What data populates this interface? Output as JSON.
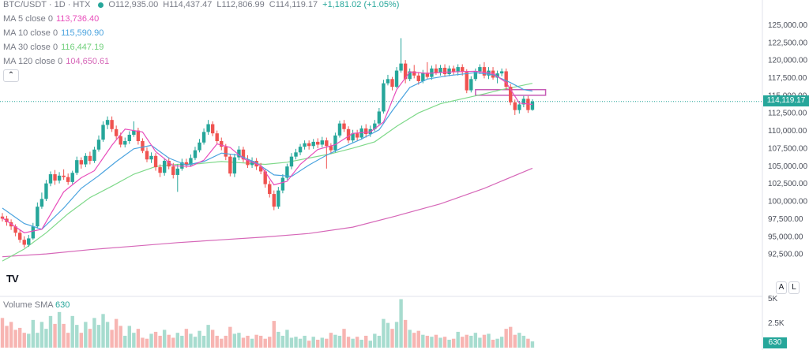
{
  "header": {
    "symbol": "BTC/USDT · 1D · HTX",
    "open": "O112,935.00",
    "high": "H114,437.47",
    "low": "L112,806.99",
    "close": "C114,119.17",
    "change": "+1,181.02 (+1.05%)"
  },
  "legend": [
    {
      "label": "MA 5 close 0",
      "value": "113,736.40",
      "color": "#e84dbb"
    },
    {
      "label": "MA 10 close 0",
      "value": "115,590.90",
      "color": "#4aa3df"
    },
    {
      "label": "MA 30 close 0",
      "value": "116,447.19",
      "color": "#6fcf7a"
    },
    {
      "label": "MA 120 close 0",
      "value": "104,650.61",
      "color": "#d667b8"
    }
  ],
  "collapse_icon": "chevron-up-icon",
  "logo_text": "TV",
  "buttons": {
    "auto": "A",
    "log": "L"
  },
  "price_tag": "114,119.17",
  "volume": {
    "title": "Volume SMA",
    "value": "630",
    "tag": "630"
  },
  "colors": {
    "up": "#26a69a",
    "down": "#ef5350",
    "up_vol": "#a7dccf",
    "down_vol": "#f7b5b2",
    "box": "#c65bb6"
  },
  "chart_data": {
    "type": "candlestick",
    "y_ticks": [
      "125,000.00",
      "122,500.00",
      "120,000.00",
      "117,500.00",
      "115,000.00",
      "112,500.00",
      "110,000.00",
      "107,500.00",
      "105,000.00",
      "102,500.00",
      "100,000.00",
      "97,500.00",
      "95,000.00",
      "92,500.00"
    ],
    "ylim": [
      90500,
      126500
    ],
    "volume_ticks": [
      "5K",
      "2.5K"
    ],
    "candles": [
      [
        97800,
        97500,
        98300,
        97100
      ],
      [
        97500,
        97000,
        97900,
        96500
      ],
      [
        97000,
        96400,
        97400,
        95900
      ],
      [
        96400,
        95500,
        96700,
        95000
      ],
      [
        95500,
        94500,
        95900,
        94100
      ],
      [
        94500,
        93800,
        95000,
        93400
      ],
      [
        93800,
        94700,
        95200,
        93500
      ],
      [
        94700,
        96400,
        96900,
        94500
      ],
      [
        96400,
        99200,
        99800,
        96100
      ],
      [
        99200,
        100300,
        101200,
        98900
      ],
      [
        100300,
        102500,
        103000,
        100000
      ],
      [
        102500,
        103800,
        104200,
        102100
      ],
      [
        103800,
        102900,
        104400,
        102300
      ],
      [
        102900,
        103600,
        104100,
        102500
      ],
      [
        103600,
        103400,
        104500,
        103000
      ],
      [
        103400,
        102700,
        103900,
        102300
      ],
      [
        102700,
        104000,
        104300,
        102400
      ],
      [
        104000,
        105800,
        106300,
        103700
      ],
      [
        105800,
        105200,
        106200,
        104600
      ],
      [
        105200,
        106400,
        106800,
        104800
      ],
      [
        106400,
        105700,
        107000,
        105200
      ],
      [
        105700,
        107300,
        107700,
        105400
      ],
      [
        107300,
        108700,
        109300,
        107000
      ],
      [
        108700,
        110800,
        111300,
        108400
      ],
      [
        110800,
        111500,
        112000,
        110200
      ],
      [
        111500,
        110200,
        112000,
        109800
      ],
      [
        110200,
        109200,
        110700,
        108800
      ],
      [
        109200,
        108000,
        109700,
        107600
      ],
      [
        108000,
        108500,
        109000,
        107600
      ],
      [
        108500,
        109400,
        109900,
        108100
      ],
      [
        109400,
        110000,
        111300,
        109100
      ],
      [
        110000,
        108500,
        110400,
        108000
      ],
      [
        108500,
        107100,
        108900,
        106800
      ],
      [
        107100,
        105900,
        107600,
        105500
      ],
      [
        105900,
        106400,
        106900,
        105400
      ],
      [
        106400,
        104800,
        106800,
        104300
      ],
      [
        104800,
        104000,
        105200,
        103400
      ],
      [
        104000,
        105700,
        106100,
        103600
      ],
      [
        105700,
        104900,
        106200,
        104500
      ],
      [
        104900,
        103700,
        105400,
        103200
      ],
      [
        103700,
        104600,
        105200,
        101300
      ],
      [
        104600,
        105500,
        106000,
        104300
      ],
      [
        105500,
        105100,
        106000,
        104700
      ],
      [
        105100,
        106100,
        106600,
        104900
      ],
      [
        106100,
        107200,
        107700,
        105800
      ],
      [
        107200,
        108300,
        108800,
        106900
      ],
      [
        108300,
        109800,
        110300,
        108000
      ],
      [
        109800,
        110900,
        111500,
        109400
      ],
      [
        110900,
        109600,
        111300,
        109200
      ],
      [
        109600,
        108500,
        110000,
        108100
      ],
      [
        108500,
        107700,
        109000,
        107200
      ],
      [
        107700,
        106300,
        108100,
        105800
      ],
      [
        106300,
        103900,
        106700,
        103500
      ],
      [
        103900,
        106200,
        106700,
        103400
      ],
      [
        106200,
        107300,
        107800,
        105800
      ],
      [
        107300,
        105900,
        107700,
        105500
      ],
      [
        105900,
        105100,
        106500,
        104700
      ],
      [
        105100,
        105700,
        106200,
        104700
      ],
      [
        105700,
        104900,
        106100,
        104400
      ],
      [
        104900,
        104200,
        105400,
        103800
      ],
      [
        104200,
        102400,
        104600,
        101900
      ],
      [
        102400,
        101000,
        102900,
        100500
      ],
      [
        101000,
        99200,
        101500,
        98700
      ],
      [
        99200,
        101500,
        102000,
        98900
      ],
      [
        101500,
        103300,
        103800,
        101100
      ],
      [
        103300,
        104900,
        105300,
        103000
      ],
      [
        104900,
        106300,
        106800,
        104500
      ],
      [
        106300,
        106900,
        107400,
        105900
      ],
      [
        106900,
        107700,
        108100,
        106500
      ],
      [
        107700,
        108200,
        108600,
        107300
      ],
      [
        108200,
        107800,
        108600,
        107300
      ],
      [
        107800,
        108400,
        108800,
        107400
      ],
      [
        108400,
        108000,
        108900,
        107500
      ],
      [
        108000,
        108600,
        109100,
        107600
      ],
      [
        108600,
        107800,
        109000,
        104600
      ],
      [
        107800,
        107200,
        108200,
        106700
      ],
      [
        107200,
        109300,
        109700,
        106900
      ],
      [
        109300,
        111000,
        111400,
        109000
      ],
      [
        111000,
        110200,
        111500,
        109800
      ],
      [
        110200,
        108600,
        110600,
        108200
      ],
      [
        108600,
        109600,
        110100,
        108300
      ],
      [
        109600,
        109000,
        110100,
        108600
      ],
      [
        109000,
        110300,
        110700,
        108700
      ],
      [
        110300,
        109500,
        110900,
        109000
      ],
      [
        109500,
        110200,
        110700,
        109100
      ],
      [
        110200,
        111000,
        111500,
        109900
      ],
      [
        111000,
        112700,
        113200,
        110700
      ],
      [
        112700,
        116700,
        117200,
        112400
      ],
      [
        116700,
        117300,
        117900,
        116400
      ],
      [
        117300,
        116200,
        117600,
        115700
      ],
      [
        116200,
        118500,
        119000,
        116000
      ],
      [
        118500,
        119500,
        123100,
        118200
      ],
      [
        119500,
        117300,
        120000,
        116700
      ],
      [
        117300,
        118400,
        118800,
        117000
      ],
      [
        118400,
        117800,
        119300,
        117400
      ],
      [
        117800,
        117000,
        118300,
        116500
      ],
      [
        117000,
        118200,
        118600,
        116700
      ],
      [
        118200,
        117600,
        119700,
        117300
      ],
      [
        117600,
        118800,
        119200,
        117200
      ],
      [
        118800,
        118200,
        119400,
        117900
      ],
      [
        118200,
        118900,
        119300,
        117800
      ],
      [
        118900,
        118000,
        119400,
        117600
      ],
      [
        118000,
        118800,
        119200,
        117700
      ],
      [
        118800,
        118300,
        119200,
        117900
      ],
      [
        118300,
        119000,
        119400,
        117800
      ],
      [
        119000,
        118300,
        119400,
        117800
      ],
      [
        118300,
        115700,
        118700,
        115300
      ],
      [
        115700,
        117300,
        117700,
        115400
      ],
      [
        117300,
        118400,
        118800,
        117000
      ],
      [
        118400,
        119000,
        119400,
        118000
      ],
      [
        119000,
        117800,
        119700,
        117400
      ],
      [
        117800,
        118500,
        119000,
        117300
      ],
      [
        118500,
        117500,
        119000,
        117200
      ],
      [
        117500,
        118100,
        118500,
        116700
      ],
      [
        118100,
        118400,
        118800,
        117700
      ],
      [
        118400,
        116200,
        118800,
        115800
      ],
      [
        116200,
        114000,
        116600,
        113600
      ],
      [
        114000,
        112900,
        114400,
        112200
      ],
      [
        112900,
        113700,
        114200,
        112400
      ],
      [
        113700,
        114500,
        114900,
        113300
      ],
      [
        114500,
        112900,
        114900,
        112500
      ],
      [
        112935,
        114119,
        114437,
        112807
      ]
    ],
    "ma5": [
      [
        0,
        97600
      ],
      [
        5,
        95500
      ],
      [
        9,
        96000
      ],
      [
        14,
        101300
      ],
      [
        18,
        103300
      ],
      [
        21,
        104300
      ],
      [
        25,
        107900
      ],
      [
        28,
        110200
      ],
      [
        32,
        109800
      ],
      [
        35,
        107000
      ],
      [
        39,
        105000
      ],
      [
        43,
        104900
      ],
      [
        46,
        105800
      ],
      [
        49,
        108100
      ],
      [
        52,
        107600
      ],
      [
        55,
        106000
      ],
      [
        59,
        105000
      ],
      [
        62,
        102300
      ],
      [
        65,
        102800
      ],
      [
        68,
        105200
      ],
      [
        72,
        107300
      ],
      [
        76,
        108000
      ],
      [
        80,
        109600
      ],
      [
        84,
        109800
      ],
      [
        87,
        111200
      ],
      [
        90,
        115800
      ],
      [
        93,
        118300
      ],
      [
        97,
        118100
      ],
      [
        102,
        118300
      ],
      [
        108,
        118400
      ],
      [
        112,
        118100
      ],
      [
        115,
        116800
      ],
      [
        118,
        113900
      ],
      [
        121,
        113700
      ]
    ],
    "ma10": [
      [
        0,
        99000
      ],
      [
        5,
        96800
      ],
      [
        9,
        96000
      ],
      [
        14,
        99000
      ],
      [
        18,
        101800
      ],
      [
        22,
        103600
      ],
      [
        26,
        105600
      ],
      [
        30,
        107400
      ],
      [
        34,
        107900
      ],
      [
        38,
        106100
      ],
      [
        42,
        105100
      ],
      [
        46,
        105600
      ],
      [
        50,
        106800
      ],
      [
        54,
        106500
      ],
      [
        58,
        105400
      ],
      [
        62,
        103700
      ],
      [
        66,
        103500
      ],
      [
        70,
        105100
      ],
      [
        74,
        106500
      ],
      [
        78,
        107700
      ],
      [
        82,
        108800
      ],
      [
        86,
        110100
      ],
      [
        89,
        112800
      ],
      [
        93,
        116100
      ],
      [
        97,
        117300
      ],
      [
        102,
        117800
      ],
      [
        108,
        118200
      ],
      [
        112,
        117900
      ],
      [
        116,
        116800
      ],
      [
        119,
        115800
      ],
      [
        121,
        115600
      ]
    ],
    "ma30": [
      [
        0,
        91500
      ],
      [
        5,
        93200
      ],
      [
        10,
        95500
      ],
      [
        15,
        98200
      ],
      [
        20,
        100500
      ],
      [
        25,
        102100
      ],
      [
        30,
        103800
      ],
      [
        35,
        104900
      ],
      [
        40,
        105200
      ],
      [
        45,
        105300
      ],
      [
        50,
        105600
      ],
      [
        55,
        105400
      ],
      [
        60,
        105200
      ],
      [
        65,
        105500
      ],
      [
        70,
        106100
      ],
      [
        75,
        106700
      ],
      [
        80,
        107500
      ],
      [
        85,
        108400
      ],
      [
        90,
        110600
      ],
      [
        95,
        112500
      ],
      [
        100,
        113800
      ],
      [
        105,
        114500
      ],
      [
        110,
        115200
      ],
      [
        114,
        115800
      ],
      [
        118,
        116300
      ],
      [
        121,
        116700
      ]
    ],
    "ma120": [
      [
        0,
        92100
      ],
      [
        10,
        92500
      ],
      [
        20,
        93100
      ],
      [
        30,
        93600
      ],
      [
        40,
        94100
      ],
      [
        50,
        94500
      ],
      [
        60,
        94900
      ],
      [
        70,
        95400
      ],
      [
        80,
        96300
      ],
      [
        90,
        97900
      ],
      [
        100,
        99600
      ],
      [
        110,
        101800
      ],
      [
        121,
        104650
      ]
    ],
    "volume": [
      3000,
      2200,
      2600,
      1800,
      2000,
      1500,
      1400,
      2800,
      1500,
      2600,
      1900,
      3200,
      2400,
      3600,
      2400,
      1500,
      3200,
      2300,
      1500,
      2600,
      1900,
      3000,
      2300,
      3400,
      2600,
      1800,
      2900,
      2200,
      1200,
      2200,
      1500,
      1900,
      1000,
      900,
      1400,
      1600,
      1200,
      1800,
      1300,
      1000,
      1500,
      1200,
      1900,
      1400,
      1100,
      1700,
      1200,
      2300,
      1800,
      1200,
      900,
      1200,
      2100,
      1400,
      1500,
      1000,
      1200,
      900,
      1300,
      1200,
      900,
      1100,
      2700,
      1600,
      1200,
      1800,
      1000,
      1100,
      900,
      1200,
      700,
      1100,
      800,
      1000,
      900,
      1500,
      1300,
      1200,
      1900,
      1100,
      900,
      1100,
      800,
      1200,
      700,
      1400,
      1200,
      2900,
      2500,
      1900,
      2600,
      4900,
      2800,
      1800,
      1500,
      1700,
      1300,
      1200,
      1100,
      1300,
      1000,
      1100,
      800,
      900,
      1600,
      1100,
      1300,
      1200,
      1500,
      1000,
      1300,
      1400,
      800,
      900,
      1100,
      1900,
      2100,
      1300,
      1500,
      1200,
      900,
      630
    ],
    "resistance_box": [
      115000,
      115800
    ],
    "box_range": [
      108,
      124
    ]
  }
}
